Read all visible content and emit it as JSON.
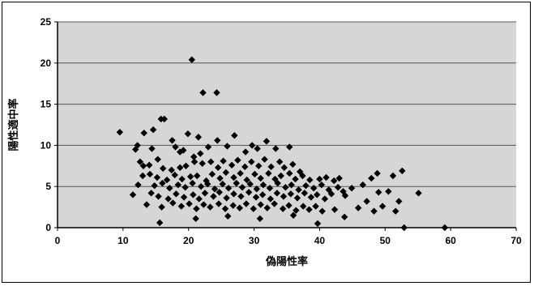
{
  "chart_data": {
    "type": "scatter",
    "title": "",
    "xlabel": "偽陽性率",
    "ylabel": "陽性適中率",
    "xlim": [
      0,
      70
    ],
    "ylim": [
      0,
      25
    ],
    "xticks": [
      "0",
      "10",
      "20",
      "30",
      "40",
      "50",
      "60",
      "70"
    ],
    "yticks": [
      "0",
      "5",
      "10",
      "15",
      "20",
      "25"
    ],
    "grid": "horizontal",
    "legend": "none",
    "marker": "diamond",
    "marker_color": "#000000",
    "plot_background": "#d6d6d6",
    "gridline_color": "#555555",
    "points": [
      [
        20.5,
        20.4
      ],
      [
        22.2,
        16.4
      ],
      [
        24.3,
        16.4
      ],
      [
        15.8,
        13.2
      ],
      [
        16.3,
        13.2
      ],
      [
        9.5,
        11.6
      ],
      [
        13.2,
        11.5
      ],
      [
        19.9,
        11.4
      ],
      [
        14.6,
        11.9
      ],
      [
        21.5,
        11.0
      ],
      [
        12.2,
        10.0
      ],
      [
        11.9,
        9.5
      ],
      [
        14.4,
        9.6
      ],
      [
        17.5,
        10.6
      ],
      [
        18.0,
        9.8
      ],
      [
        18.7,
        9.2
      ],
      [
        19.2,
        9.4
      ],
      [
        20.8,
        8.6
      ],
      [
        21.8,
        9.0
      ],
      [
        23.0,
        9.8
      ],
      [
        24.4,
        10.6
      ],
      [
        25.9,
        9.9
      ],
      [
        27.0,
        11.2
      ],
      [
        28.7,
        9.2
      ],
      [
        29.7,
        10.0
      ],
      [
        30.5,
        9.6
      ],
      [
        31.9,
        10.5
      ],
      [
        33.3,
        9.6
      ],
      [
        35.4,
        9.8
      ],
      [
        12.6,
        8.0
      ],
      [
        13.1,
        7.5
      ],
      [
        14.0,
        7.6
      ],
      [
        15.3,
        8.3
      ],
      [
        16.1,
        7.2
      ],
      [
        17.4,
        7.0
      ],
      [
        18.7,
        7.3
      ],
      [
        19.6,
        7.5
      ],
      [
        20.9,
        8.0
      ],
      [
        22.1,
        7.8
      ],
      [
        23.4,
        8.0
      ],
      [
        24.5,
        7.3
      ],
      [
        25.3,
        8.1
      ],
      [
        26.6,
        7.6
      ],
      [
        27.5,
        8.2
      ],
      [
        28.6,
        7.4
      ],
      [
        29.6,
        8.0
      ],
      [
        30.7,
        7.5
      ],
      [
        31.6,
        8.3
      ],
      [
        32.6,
        7.4
      ],
      [
        33.9,
        8.0
      ],
      [
        34.6,
        7.3
      ],
      [
        35.9,
        7.7
      ],
      [
        37.0,
        6.8
      ],
      [
        13.0,
        6.3
      ],
      [
        14.1,
        6.5
      ],
      [
        15.2,
        6.1
      ],
      [
        16.7,
        5.8
      ],
      [
        17.9,
        6.4
      ],
      [
        19.0,
        5.9
      ],
      [
        20.3,
        6.2
      ],
      [
        21.3,
        6.3
      ],
      [
        22.7,
        5.7
      ],
      [
        23.6,
        6.5
      ],
      [
        24.8,
        6.0
      ],
      [
        25.7,
        6.7
      ],
      [
        26.9,
        6.1
      ],
      [
        27.9,
        6.6
      ],
      [
        28.9,
        5.8
      ],
      [
        30.1,
        6.5
      ],
      [
        31.0,
        6.0
      ],
      [
        32.2,
        6.6
      ],
      [
        33.2,
        5.9
      ],
      [
        34.1,
        6.3
      ],
      [
        35.4,
        6.6
      ],
      [
        36.3,
        5.9
      ],
      [
        37.4,
        6.3
      ],
      [
        38.5,
        5.8
      ],
      [
        40.0,
        5.9
      ],
      [
        41.0,
        6.1
      ],
      [
        42.2,
        5.7
      ],
      [
        43.0,
        6.0
      ],
      [
        12.3,
        5.2
      ],
      [
        14.8,
        5.1
      ],
      [
        16.0,
        5.4
      ],
      [
        17.1,
        4.8
      ],
      [
        18.4,
        5.2
      ],
      [
        19.5,
        4.9
      ],
      [
        20.6,
        5.4
      ],
      [
        21.9,
        5.0
      ],
      [
        22.9,
        5.3
      ],
      [
        24.0,
        4.7
      ],
      [
        25.2,
        5.3
      ],
      [
        26.1,
        4.8
      ],
      [
        27.3,
        5.4
      ],
      [
        28.2,
        4.9
      ],
      [
        29.4,
        5.3
      ],
      [
        30.4,
        4.7
      ],
      [
        31.4,
        5.2
      ],
      [
        32.4,
        4.8
      ],
      [
        33.6,
        5.4
      ],
      [
        34.8,
        4.9
      ],
      [
        35.7,
        5.2
      ],
      [
        36.8,
        4.6
      ],
      [
        37.9,
        5.1
      ],
      [
        39.1,
        4.8
      ],
      [
        40.3,
        5.2
      ],
      [
        41.4,
        4.6
      ],
      [
        42.8,
        4.9
      ],
      [
        43.6,
        4.4
      ],
      [
        44.9,
        4.8
      ],
      [
        46.6,
        5.2
      ],
      [
        47.9,
        6.0
      ],
      [
        48.8,
        6.6
      ],
      [
        51.2,
        6.3
      ],
      [
        52.6,
        6.9
      ],
      [
        11.5,
        4.0
      ],
      [
        14.3,
        4.2
      ],
      [
        15.4,
        3.8
      ],
      [
        16.9,
        3.5
      ],
      [
        18.1,
        4.1
      ],
      [
        19.3,
        3.7
      ],
      [
        20.7,
        4.0
      ],
      [
        21.6,
        3.5
      ],
      [
        22.5,
        4.2
      ],
      [
        23.8,
        3.8
      ],
      [
        24.7,
        4.3
      ],
      [
        25.8,
        3.6
      ],
      [
        26.9,
        4.1
      ],
      [
        28.0,
        3.8
      ],
      [
        29.2,
        4.3
      ],
      [
        30.3,
        3.7
      ],
      [
        31.3,
        4.0
      ],
      [
        32.5,
        3.5
      ],
      [
        33.5,
        4.2
      ],
      [
        34.5,
        3.8
      ],
      [
        35.6,
        4.1
      ],
      [
        36.6,
        3.6
      ],
      [
        37.7,
        4.2
      ],
      [
        38.7,
        3.7
      ],
      [
        39.6,
        4.0
      ],
      [
        40.8,
        3.5
      ],
      [
        41.8,
        4.1
      ],
      [
        43.9,
        3.9
      ],
      [
        47.2,
        3.2
      ],
      [
        49.0,
        4.3
      ],
      [
        50.5,
        4.4
      ],
      [
        52.1,
        3.2
      ],
      [
        55.1,
        4.2
      ],
      [
        13.6,
        2.8
      ],
      [
        15.9,
        2.5
      ],
      [
        17.6,
        3.0
      ],
      [
        18.9,
        2.6
      ],
      [
        20.1,
        2.9
      ],
      [
        21.2,
        2.3
      ],
      [
        22.3,
        2.8
      ],
      [
        23.3,
        2.5
      ],
      [
        24.6,
        2.9
      ],
      [
        25.6,
        2.3
      ],
      [
        26.8,
        2.7
      ],
      [
        27.8,
        2.4
      ],
      [
        28.8,
        2.9
      ],
      [
        29.9,
        2.3
      ],
      [
        31.0,
        2.8
      ],
      [
        32.0,
        2.4
      ],
      [
        33.1,
        2.9
      ],
      [
        34.4,
        2.3
      ],
      [
        35.3,
        2.7
      ],
      [
        36.4,
        2.1
      ],
      [
        37.5,
        2.6
      ],
      [
        38.4,
        2.2
      ],
      [
        39.4,
        2.6
      ],
      [
        40.4,
        2.0
      ],
      [
        42.3,
        2.2
      ],
      [
        45.9,
        2.4
      ],
      [
        48.3,
        2.0
      ],
      [
        49.6,
        2.6
      ],
      [
        51.6,
        2.0
      ],
      [
        15.6,
        0.6
      ],
      [
        21.1,
        1.1
      ],
      [
        26.0,
        1.4
      ],
      [
        30.9,
        1.1
      ],
      [
        36.0,
        1.5
      ],
      [
        39.7,
        0.5
      ],
      [
        43.8,
        1.3
      ],
      [
        52.9,
        0.0
      ],
      [
        59.1,
        0.0
      ]
    ]
  }
}
